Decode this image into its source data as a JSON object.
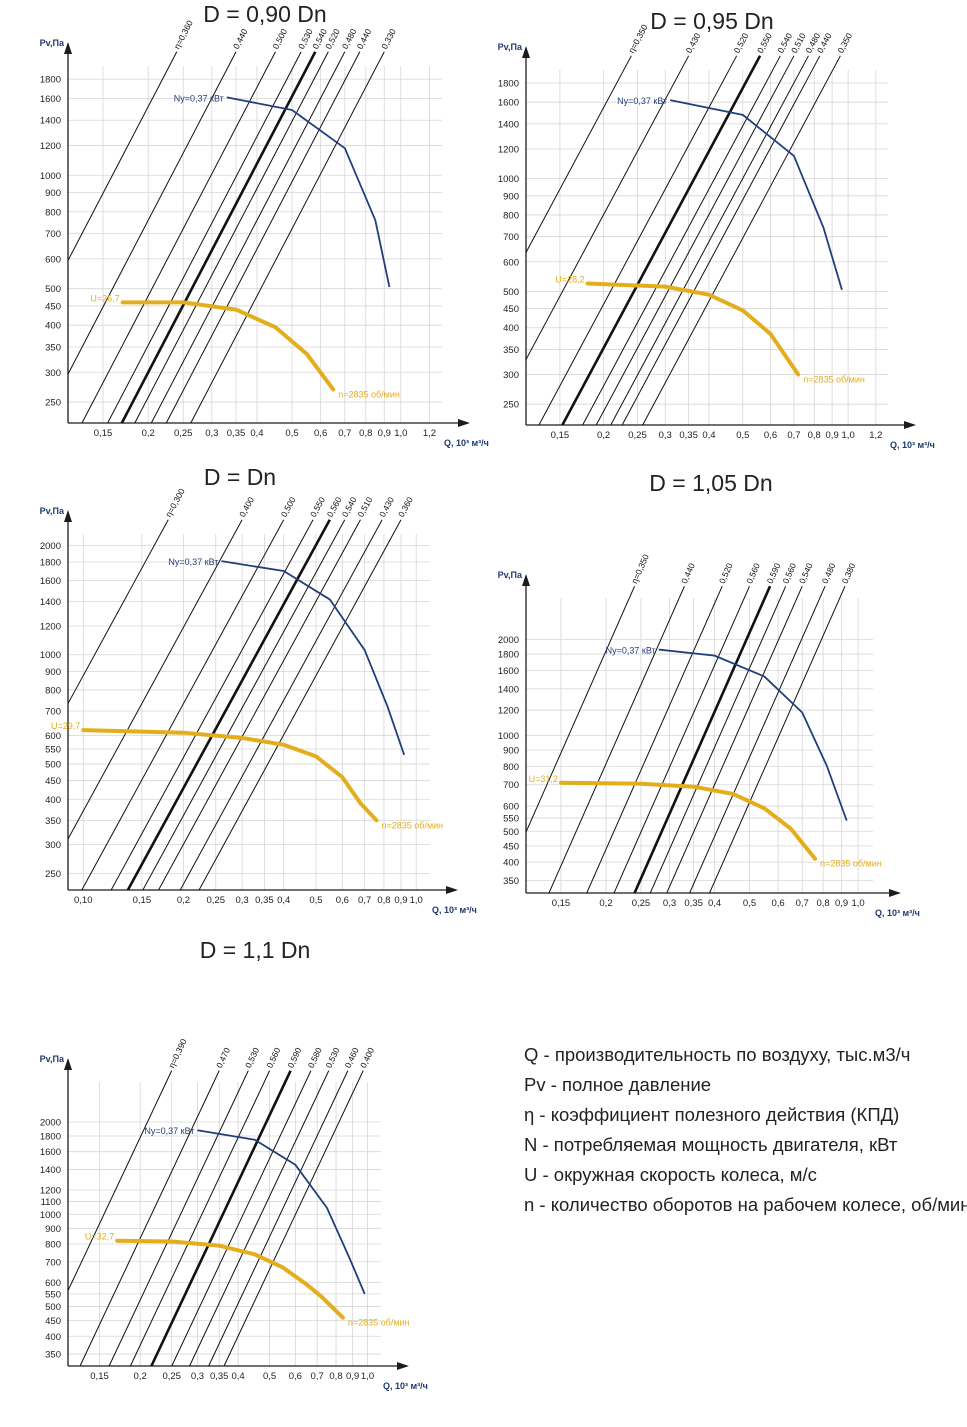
{
  "colors": {
    "grid": "#d6d6d6",
    "axis": "#1c1c1c",
    "power": "#213f7b",
    "speed": "#e3ad1c",
    "eta_line": "#111111"
  },
  "axis_labels": {
    "y": "Pv,Па",
    "x": "Q, 10³ м³/ч"
  },
  "chart_data": [
    {
      "type": "line",
      "title": "D = 0,90 Dn",
      "xlabel": "Q, 10³ м³/ч",
      "ylabel": "Pv,Па",
      "x_ticks": [
        0.15,
        0.2,
        0.25,
        0.3,
        0.35,
        0.4,
        0.5,
        0.6,
        0.7,
        0.8,
        0.9,
        1.0,
        1.2
      ],
      "x_tick_labels": [
        "0,15",
        "0,2",
        "0,25",
        "0,3",
        "0,35",
        "0,4",
        "0,5",
        "0,6",
        "0,7",
        "0,8",
        "0,9",
        "1,0",
        "1,2"
      ],
      "y_ticks": [
        250,
        300,
        350,
        400,
        450,
        500,
        600,
        700,
        800,
        900,
        1000,
        1200,
        1400,
        1600,
        1800
      ],
      "xlim": [
        0.12,
        1.3
      ],
      "ylim": [
        220,
        1950
      ],
      "power_curve": {
        "label": "Ny=0,37 кВт",
        "points": [
          [
            0.33,
            1610
          ],
          [
            0.5,
            1490
          ],
          [
            0.7,
            1180
          ],
          [
            0.85,
            760
          ],
          [
            0.93,
            505
          ]
        ]
      },
      "speed_curve": {
        "u_label": "U=26,7",
        "n_label": "n=2835 об/мин",
        "points": [
          [
            0.17,
            460
          ],
          [
            0.25,
            460
          ],
          [
            0.35,
            440
          ],
          [
            0.45,
            395
          ],
          [
            0.55,
            335
          ],
          [
            0.65,
            270
          ]
        ]
      },
      "efficiency_lines": [
        {
          "label": "η=0,360",
          "q_ref": 0.24,
          "bold": false
        },
        {
          "label": "0,440",
          "q_ref": 0.35,
          "bold": false
        },
        {
          "label": "0,500",
          "q_ref": 0.45,
          "bold": false
        },
        {
          "label": "0,530",
          "q_ref": 0.53,
          "bold": false
        },
        {
          "label": "0,540",
          "q_ref": 0.58,
          "bold": true
        },
        {
          "label": "0,520",
          "q_ref": 0.63,
          "bold": false
        },
        {
          "label": "0,480",
          "q_ref": 0.7,
          "bold": false
        },
        {
          "label": "0,440",
          "q_ref": 0.77,
          "bold": false
        },
        {
          "label": "0,330",
          "q_ref": 0.9,
          "bold": false
        }
      ]
    },
    {
      "type": "line",
      "title": "D = 0,95 Dn",
      "xlabel": "Q, 10³ м³/ч",
      "ylabel": "Pv,Па",
      "x_ticks": [
        0.15,
        0.2,
        0.25,
        0.3,
        0.35,
        0.4,
        0.5,
        0.6,
        0.7,
        0.8,
        0.9,
        1.0,
        1.2
      ],
      "x_tick_labels": [
        "0,15",
        "0,2",
        "0,25",
        "0,3",
        "0,35",
        "0,4",
        "0,5",
        "0,6",
        "0,7",
        "0,8",
        "0,9",
        "1,0",
        "1,2"
      ],
      "y_ticks": [
        250,
        300,
        350,
        400,
        450,
        500,
        600,
        700,
        800,
        900,
        1000,
        1200,
        1400,
        1600,
        1800
      ],
      "xlim": [
        0.12,
        1.3
      ],
      "ylim": [
        220,
        1950
      ],
      "power_curve": {
        "label": "Ny=0,37 кВт",
        "points": [
          [
            0.31,
            1620
          ],
          [
            0.5,
            1480
          ],
          [
            0.7,
            1150
          ],
          [
            0.85,
            740
          ],
          [
            0.96,
            505
          ]
        ]
      },
      "speed_curve": {
        "u_label": "U=28,2",
        "n_label": "n=2835 об/мин",
        "points": [
          [
            0.18,
            525
          ],
          [
            0.3,
            515
          ],
          [
            0.4,
            490
          ],
          [
            0.5,
            445
          ],
          [
            0.6,
            385
          ],
          [
            0.72,
            300
          ]
        ]
      },
      "efficiency_lines": [
        {
          "label": "η=0,350",
          "q_ref": 0.24,
          "bold": false
        },
        {
          "label": "0,430",
          "q_ref": 0.35,
          "bold": false
        },
        {
          "label": "0,520",
          "q_ref": 0.48,
          "bold": false
        },
        {
          "label": "0,550",
          "q_ref": 0.56,
          "bold": true
        },
        {
          "label": "0,540",
          "q_ref": 0.64,
          "bold": false
        },
        {
          "label": "0,510",
          "q_ref": 0.7,
          "bold": false
        },
        {
          "label": "0,480",
          "q_ref": 0.77,
          "bold": false
        },
        {
          "label": "0,440",
          "q_ref": 0.83,
          "bold": false
        },
        {
          "label": "0,350",
          "q_ref": 0.95,
          "bold": false
        }
      ]
    },
    {
      "type": "line",
      "title": "D = Dn",
      "xlabel": "Q, 10³ м³/ч",
      "ylabel": "Pv,Па",
      "x_ticks": [
        0.1,
        0.15,
        0.2,
        0.25,
        0.3,
        0.35,
        0.4,
        0.5,
        0.6,
        0.7,
        0.8,
        0.9,
        1.0
      ],
      "x_tick_labels": [
        "0,10",
        "0,15",
        "0,2",
        "0,25",
        "0,3",
        "0,35",
        "0,4",
        "0,5",
        "0,6",
        "0,7",
        "0,8",
        "0,9",
        "1,0"
      ],
      "y_ticks": [
        250,
        300,
        350,
        400,
        450,
        500,
        550,
        600,
        700,
        800,
        900,
        1000,
        1200,
        1400,
        1600,
        1800,
        2000
      ],
      "xlim": [
        0.09,
        1.1
      ],
      "ylim": [
        225,
        2150
      ],
      "power_curve": {
        "label": "Ny=0,37 кВт",
        "points": [
          [
            0.26,
            1810
          ],
          [
            0.4,
            1700
          ],
          [
            0.55,
            1420
          ],
          [
            0.7,
            1030
          ],
          [
            0.82,
            720
          ],
          [
            0.92,
            530
          ]
        ]
      },
      "speed_curve": {
        "u_label": "U=29,7",
        "n_label": "n=2835 об/мин",
        "points": [
          [
            0.1,
            620
          ],
          [
            0.2,
            610
          ],
          [
            0.3,
            590
          ],
          [
            0.4,
            565
          ],
          [
            0.5,
            525
          ],
          [
            0.6,
            460
          ],
          [
            0.68,
            390
          ],
          [
            0.76,
            350
          ]
        ]
      },
      "efficiency_lines": [
        {
          "label": "η=0,300",
          "q_ref": 0.18,
          "bold": false
        },
        {
          "label": "0,400",
          "q_ref": 0.3,
          "bold": false
        },
        {
          "label": "0,500",
          "q_ref": 0.4,
          "bold": false
        },
        {
          "label": "0,550",
          "q_ref": 0.49,
          "bold": false
        },
        {
          "label": "0,560",
          "q_ref": 0.55,
          "bold": true
        },
        {
          "label": "0,540",
          "q_ref": 0.61,
          "bold": false
        },
        {
          "label": "0,510",
          "q_ref": 0.68,
          "bold": false
        },
        {
          "label": "0,430",
          "q_ref": 0.79,
          "bold": false
        },
        {
          "label": "0,360",
          "q_ref": 0.9,
          "bold": false
        }
      ]
    },
    {
      "type": "line",
      "title": "D = 1,05 Dn",
      "xlabel": "Q, 10³ м³/ч",
      "ylabel": "Pv,Па",
      "x_ticks": [
        0.15,
        0.2,
        0.25,
        0.3,
        0.35,
        0.4,
        0.5,
        0.6,
        0.7,
        0.8,
        0.9,
        1.0
      ],
      "x_tick_labels": [
        "0,15",
        "0,2",
        "0,25",
        "0,3",
        "0,35",
        "0,4",
        "0,5",
        "0,6",
        "0,7",
        "0,8",
        "0,9",
        "1,0"
      ],
      "y_ticks": [
        350,
        400,
        450,
        500,
        550,
        600,
        700,
        800,
        900,
        1000,
        1200,
        1400,
        1600,
        1800,
        2000
      ],
      "xlim": [
        0.12,
        1.1
      ],
      "ylim": [
        320,
        2700
      ],
      "power_curve": {
        "label": "Ny=0,37 кВт",
        "points": [
          [
            0.28,
            1860
          ],
          [
            0.4,
            1780
          ],
          [
            0.55,
            1530
          ],
          [
            0.7,
            1180
          ],
          [
            0.82,
            800
          ],
          [
            0.93,
            540
          ]
        ]
      },
      "speed_curve": {
        "u_label": "U=31,2",
        "n_label": "n=2835 об/мин",
        "points": [
          [
            0.15,
            710
          ],
          [
            0.25,
            705
          ],
          [
            0.35,
            690
          ],
          [
            0.45,
            655
          ],
          [
            0.55,
            590
          ],
          [
            0.65,
            510
          ],
          [
            0.76,
            410
          ]
        ]
      },
      "efficiency_lines": [
        {
          "label": "η=0,350",
          "q_ref": 0.24,
          "bold": false
        },
        {
          "label": "0,440",
          "q_ref": 0.33,
          "bold": false
        },
        {
          "label": "0,520",
          "q_ref": 0.42,
          "bold": false
        },
        {
          "label": "0,560",
          "q_ref": 0.5,
          "bold": false
        },
        {
          "label": "0,590",
          "q_ref": 0.57,
          "bold": true
        },
        {
          "label": "0,560",
          "q_ref": 0.63,
          "bold": false
        },
        {
          "label": "0,540",
          "q_ref": 0.7,
          "bold": false
        },
        {
          "label": "0,480",
          "q_ref": 0.81,
          "bold": false
        },
        {
          "label": "0,380",
          "q_ref": 0.92,
          "bold": false
        }
      ]
    },
    {
      "type": "line",
      "title": "D = 1,1 Dn",
      "xlabel": "Q, 10³ м³/ч",
      "ylabel": "Pv,Па",
      "x_ticks": [
        0.15,
        0.2,
        0.25,
        0.3,
        0.35,
        0.4,
        0.5,
        0.6,
        0.7,
        0.8,
        0.9,
        1.0
      ],
      "x_tick_labels": [
        "0,15",
        "0,2",
        "0,25",
        "0,3",
        "0,35",
        "0,4",
        "0,5",
        "0,6",
        "0,7",
        "0,8",
        "0,9",
        "1,0"
      ],
      "y_ticks": [
        350,
        400,
        450,
        500,
        550,
        600,
        700,
        800,
        900,
        1000,
        1100,
        1200,
        1400,
        1600,
        1800,
        2000
      ],
      "xlim": [
        0.12,
        1.1
      ],
      "ylim": [
        320,
        2700
      ],
      "power_curve": {
        "label": "Ny=0,37 кВт",
        "points": [
          [
            0.3,
            1880
          ],
          [
            0.45,
            1750
          ],
          [
            0.6,
            1450
          ],
          [
            0.75,
            1050
          ],
          [
            0.88,
            720
          ],
          [
            0.98,
            550
          ]
        ]
      },
      "speed_curve": {
        "u_label": "U=32,7",
        "n_label": "n=2835 об/мин",
        "points": [
          [
            0.17,
            820
          ],
          [
            0.25,
            815
          ],
          [
            0.35,
            790
          ],
          [
            0.45,
            740
          ],
          [
            0.55,
            670
          ],
          [
            0.65,
            590
          ],
          [
            0.72,
            540
          ],
          [
            0.84,
            460
          ]
        ]
      },
      "efficiency_lines": [
        {
          "label": "η=0,390",
          "q_ref": 0.25,
          "bold": false
        },
        {
          "label": "0,470",
          "q_ref": 0.35,
          "bold": false
        },
        {
          "label": "0,530",
          "q_ref": 0.43,
          "bold": false
        },
        {
          "label": "0,560",
          "q_ref": 0.5,
          "bold": false
        },
        {
          "label": "0,590",
          "q_ref": 0.58,
          "bold": true
        },
        {
          "label": "0,580",
          "q_ref": 0.67,
          "bold": false
        },
        {
          "label": "0,530",
          "q_ref": 0.76,
          "bold": false
        },
        {
          "label": "0,460",
          "q_ref": 0.87,
          "bold": false
        },
        {
          "label": "0,400",
          "q_ref": 0.97,
          "bold": false
        }
      ]
    }
  ],
  "legend": [
    "Q - производительность по воздуху, тыс.м3/ч",
    "Pv - полное давление",
    "η - коэффициент полезного действия (КПД)",
    "N - потребляемая мощность двигателя, кВт",
    "U - окружная скорость колеса, м/с",
    "n - количество оборотов на рабочем колесе, об/мин"
  ]
}
